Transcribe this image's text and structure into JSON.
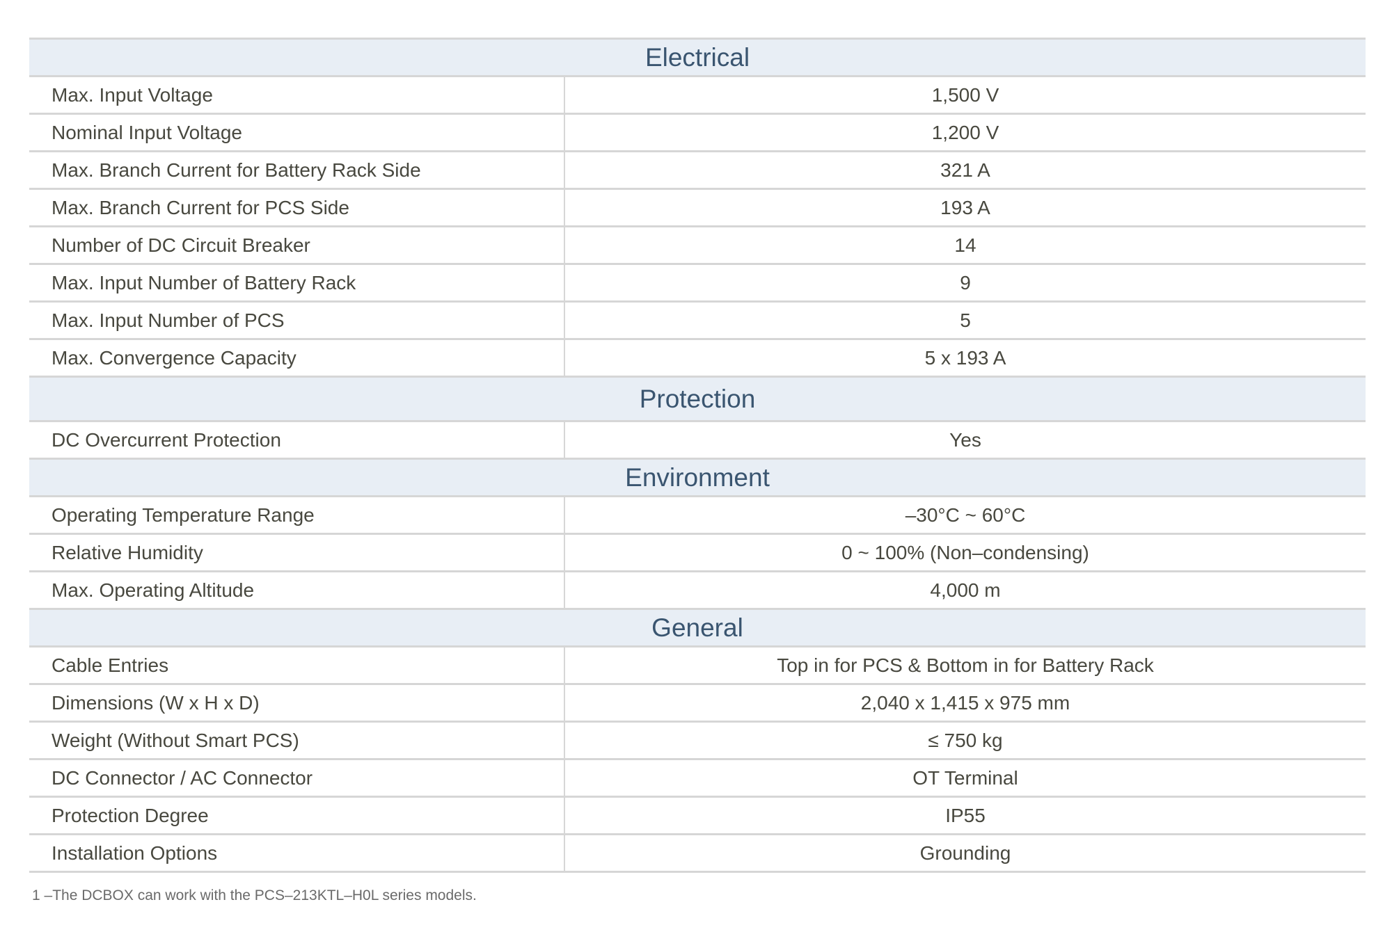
{
  "sections": [
    {
      "title": "Electrical",
      "rows": [
        {
          "label": "Max. Input Voltage",
          "value": "1,500 V"
        },
        {
          "label": "Nominal Input Voltage",
          "value": "1,200 V"
        },
        {
          "label": "Max. Branch Current for Battery Rack Side",
          "value": "321 A"
        },
        {
          "label": "Max. Branch Current for PCS Side",
          "value": "193 A"
        },
        {
          "label": "Number of DC Circuit Breaker",
          "value": "14"
        },
        {
          "label": "Max. Input Number of Battery Rack",
          "value": "9"
        },
        {
          "label": "Max. Input Number of PCS",
          "value": "5"
        },
        {
          "label": "Max. Convergence Capacity",
          "value": "5 x 193 A"
        }
      ]
    },
    {
      "title": "Protection",
      "rows": [
        {
          "label": "DC Overcurrent Protection",
          "value": "Yes"
        }
      ]
    },
    {
      "title": "Environment",
      "rows": [
        {
          "label": "Operating Temperature Range",
          "value": "–30°C ~ 60°C"
        },
        {
          "label": "Relative Humidity",
          "value": "0 ~ 100% (Non–condensing)"
        },
        {
          "label": "Max. Operating Altitude",
          "value": "4,000 m"
        }
      ]
    },
    {
      "title": "General",
      "rows": [
        {
          "label": "Cable Entries",
          "value": "Top in for PCS & Bottom in for Battery Rack"
        },
        {
          "label": "Dimensions (W x H x D)",
          "value": "2,040 x 1,415 x 975 mm"
        },
        {
          "label": "Weight (Without Smart PCS)",
          "value": "≤ 750 kg"
        },
        {
          "label": "DC Connector / AC Connector",
          "value": "OT Terminal"
        },
        {
          "label": "Protection Degree",
          "value": "IP55"
        },
        {
          "label": "Installation Options",
          "value": "Grounding"
        }
      ]
    }
  ],
  "footnote": "1 –The DCBOX can work with the PCS–213KTL–H0L series models.",
  "colors": {
    "header_bg": "#e8eef5",
    "header_text": "#3a5570",
    "border": "#d6d6d6",
    "text": "#48483f"
  }
}
